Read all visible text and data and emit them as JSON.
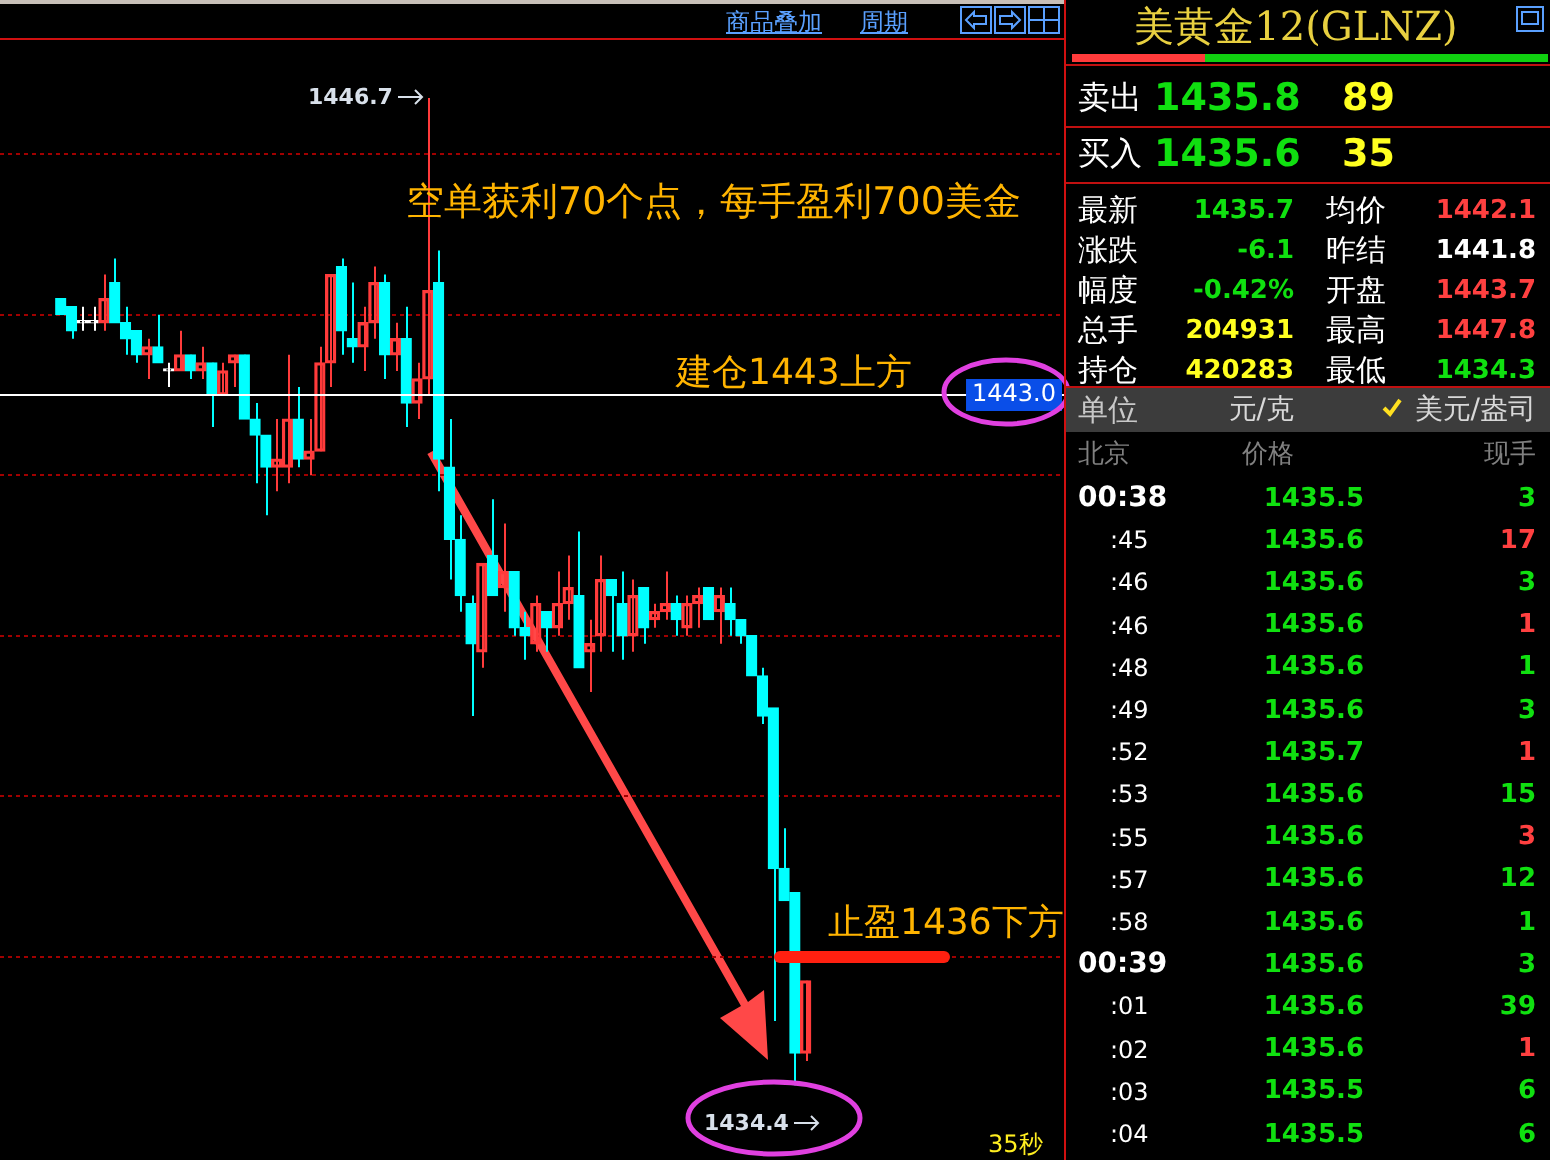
{
  "chart_data": [
    {
      "type": "candlestick",
      "categories": [
        null,
        null,
        null,
        null,
        null,
        null,
        null,
        null,
        null,
        null,
        null,
        null,
        null,
        null,
        null,
        null,
        null,
        null,
        null,
        null,
        null,
        null,
        null,
        null,
        null,
        null,
        null,
        null,
        null,
        null,
        null,
        null,
        null,
        null,
        null,
        null,
        null,
        null,
        null,
        null,
        null,
        null,
        null,
        null,
        null,
        null,
        null,
        null,
        null,
        null,
        null,
        null,
        null,
        null,
        null,
        null,
        null,
        null,
        null,
        null,
        null,
        null,
        null,
        null,
        null,
        null,
        null,
        null,
        null,
        null
      ],
      "ohlc": [
        [
          1444.2,
          1444.2,
          1444.0,
          1444.0
        ],
        [
          1444.1,
          1444.1,
          1443.7,
          1443.8
        ],
        [
          1443.9,
          1444.1,
          1443.8,
          1443.9
        ],
        [
          1443.9,
          1444.1,
          1443.8,
          1443.9
        ],
        [
          1443.9,
          1444.5,
          1443.8,
          1444.2
        ],
        [
          1444.4,
          1444.7,
          1443.9,
          1443.9
        ],
        [
          1443.9,
          1444.1,
          1443.5,
          1443.7
        ],
        [
          1443.8,
          1443.8,
          1443.4,
          1443.5
        ],
        [
          1443.5,
          1443.7,
          1443.2,
          1443.6
        ],
        [
          1443.6,
          1444.0,
          1443.4,
          1443.4
        ],
        [
          1443.3,
          1443.4,
          1443.1,
          1443.3
        ],
        [
          1443.3,
          1443.8,
          1443.3,
          1443.5
        ],
        [
          1443.5,
          1443.5,
          1443.2,
          1443.3
        ],
        [
          1443.3,
          1443.6,
          1443.2,
          1443.4
        ],
        [
          1443.4,
          1443.4,
          1442.6,
          1443.0
        ],
        [
          1443.0,
          1443.4,
          1443.0,
          1443.3
        ],
        [
          1443.4,
          1443.5,
          1443.1,
          1443.5
        ],
        [
          1443.5,
          1443.5,
          1442.7,
          1442.7
        ],
        [
          1442.7,
          1442.9,
          1441.9,
          1442.5
        ],
        [
          1442.5,
          1442.5,
          1441.5,
          1442.1
        ],
        [
          1442.1,
          1442.7,
          1441.8,
          1442.2
        ],
        [
          1442.1,
          1443.5,
          1441.9,
          1442.7
        ],
        [
          1442.7,
          1443.1,
          1442.1,
          1442.2
        ],
        [
          1442.2,
          1442.7,
          1442.0,
          1442.3
        ],
        [
          1442.3,
          1443.6,
          1442.3,
          1443.4
        ],
        [
          1443.4,
          1444.5,
          1443.1,
          1444.5
        ],
        [
          1444.6,
          1444.7,
          1443.5,
          1443.8
        ],
        [
          1443.7,
          1444.4,
          1443.4,
          1443.6
        ],
        [
          1443.6,
          1444.1,
          1443.3,
          1443.9
        ],
        [
          1443.9,
          1444.6,
          1443.7,
          1444.4
        ],
        [
          1444.4,
          1444.5,
          1443.2,
          1443.5
        ],
        [
          1443.5,
          1443.9,
          1443.3,
          1443.7
        ],
        [
          1443.7,
          1444.1,
          1442.6,
          1442.9
        ],
        [
          1442.9,
          1443.4,
          1442.7,
          1443.2
        ],
        [
          1443.2,
          1446.7,
          1443.0,
          1444.3
        ],
        [
          1444.4,
          1444.8,
          1441.8,
          1442.2
        ],
        [
          1442.1,
          1442.7,
          1440.7,
          1441.2
        ],
        [
          1441.2,
          1441.5,
          1440.3,
          1440.5
        ],
        [
          1440.4,
          1440.5,
          1439.0,
          1439.9
        ],
        [
          1439.8,
          1440.9,
          1439.6,
          1440.9
        ],
        [
          1441.0,
          1441.7,
          1440.5,
          1440.5
        ],
        [
          1440.6,
          1441.4,
          1440.3,
          1440.8
        ],
        [
          1440.8,
          1440.8,
          1440.0,
          1440.1
        ],
        [
          1440.1,
          1440.3,
          1439.7,
          1440.0
        ],
        [
          1439.9,
          1440.5,
          1439.8,
          1440.4
        ],
        [
          1440.3,
          1440.3,
          1439.8,
          1440.1
        ],
        [
          1440.1,
          1440.8,
          1440.0,
          1440.4
        ],
        [
          1440.4,
          1441.0,
          1440.2,
          1440.6
        ],
        [
          1440.5,
          1441.3,
          1439.6,
          1439.6
        ],
        [
          1439.8,
          1440.2,
          1439.3,
          1439.9
        ],
        [
          1440.0,
          1441.0,
          1439.8,
          1440.7
        ],
        [
          1440.7,
          1440.7,
          1439.8,
          1440.5
        ],
        [
          1440.4,
          1440.8,
          1439.7,
          1440.0
        ],
        [
          1440.0,
          1440.7,
          1439.8,
          1440.5
        ],
        [
          1440.6,
          1440.6,
          1439.9,
          1440.1
        ],
        [
          1440.2,
          1440.4,
          1440.1,
          1440.3
        ],
        [
          1440.3,
          1440.8,
          1440.2,
          1440.4
        ],
        [
          1440.4,
          1440.5,
          1440.0,
          1440.2
        ],
        [
          1440.1,
          1440.5,
          1440.0,
          1440.4
        ],
        [
          1440.4,
          1440.6,
          1440.1,
          1440.5
        ],
        [
          1440.6,
          1440.6,
          1440.2,
          1440.2
        ],
        [
          1440.3,
          1440.6,
          1439.9,
          1440.5
        ],
        [
          1440.4,
          1440.6,
          1440.0,
          1440.2
        ],
        [
          1440.2,
          1440.2,
          1439.9,
          1440.0
        ],
        [
          1440.0,
          1440.0,
          1439.5,
          1439.5
        ],
        [
          1439.5,
          1439.6,
          1438.9,
          1439.0
        ],
        [
          1439.1,
          1439.1,
          1435.2,
          1437.1
        ],
        [
          1437.1,
          1437.6,
          1436.7,
          1436.7
        ],
        [
          1436.8,
          1436.8,
          1434.4,
          1434.8
        ],
        [
          1434.8,
          1435.7,
          1434.7,
          1435.7
        ]
      ],
      "yticks": [
        {
          "value": 1436,
          "label": null
        },
        {
          "value": 1438,
          "label": null
        },
        {
          "value": 1440,
          "label": null
        },
        {
          "value": 1442,
          "label": null
        },
        {
          "value": 1444,
          "label": null
        },
        {
          "value": 1446,
          "label": null
        }
      ],
      "grid": "y",
      "ref_lines": [
        {
          "axis": "y",
          "value": 1443.0,
          "label": "1443.0",
          "color": "#ffffff"
        },
        {
          "axis": "y",
          "value": 1436,
          "label": "止盈1436下方",
          "color": "#ff2010"
        }
      ],
      "annotations": [
        "商品叠加",
        "周期",
        "空单获利70个点，每手盈利700美金",
        "建仓1443上方",
        "1446.7",
        "1434.4",
        "35秒"
      ]
    },
    {
      "type": "other",
      "title": "美黄金12(GLNZ)",
      "annotations": [
        "卖出",
        "1435.8",
        "89",
        "买入",
        "1435.6",
        "35",
        "最新",
        "1435.7",
        "均价",
        "1442.1",
        "涨跌",
        "-6.1",
        "昨结",
        "1441.8",
        "幅度",
        "-0.42%",
        "开盘",
        "1443.7",
        "总手",
        "204931",
        "最高",
        "1447.8",
        "持仓",
        "420283",
        "最低",
        "1434.3",
        "单位",
        "元/克",
        "美元/盎司",
        "北京",
        "价格",
        "现手",
        "00:38",
        "1435.5",
        "3",
        ":45",
        "1435.6",
        "17",
        ":46",
        "1435.6",
        "3",
        ":46",
        "1435.6",
        "1",
        ":48",
        "1435.6",
        "1",
        ":49",
        "1435.6",
        "3",
        ":52",
        "1435.7",
        "1",
        ":53",
        "1435.6",
        "15",
        ":55",
        "1435.6",
        "3",
        ":57",
        "1435.6",
        "12",
        ":58",
        "1435.6",
        "1",
        "00:39",
        "1435.6",
        "3",
        ":01",
        "1435.6",
        "39",
        ":02",
        "1435.6",
        "1",
        ":03",
        "1435.5",
        "6",
        ":04",
        "1435.5",
        "6"
      ]
    }
  ]
}
